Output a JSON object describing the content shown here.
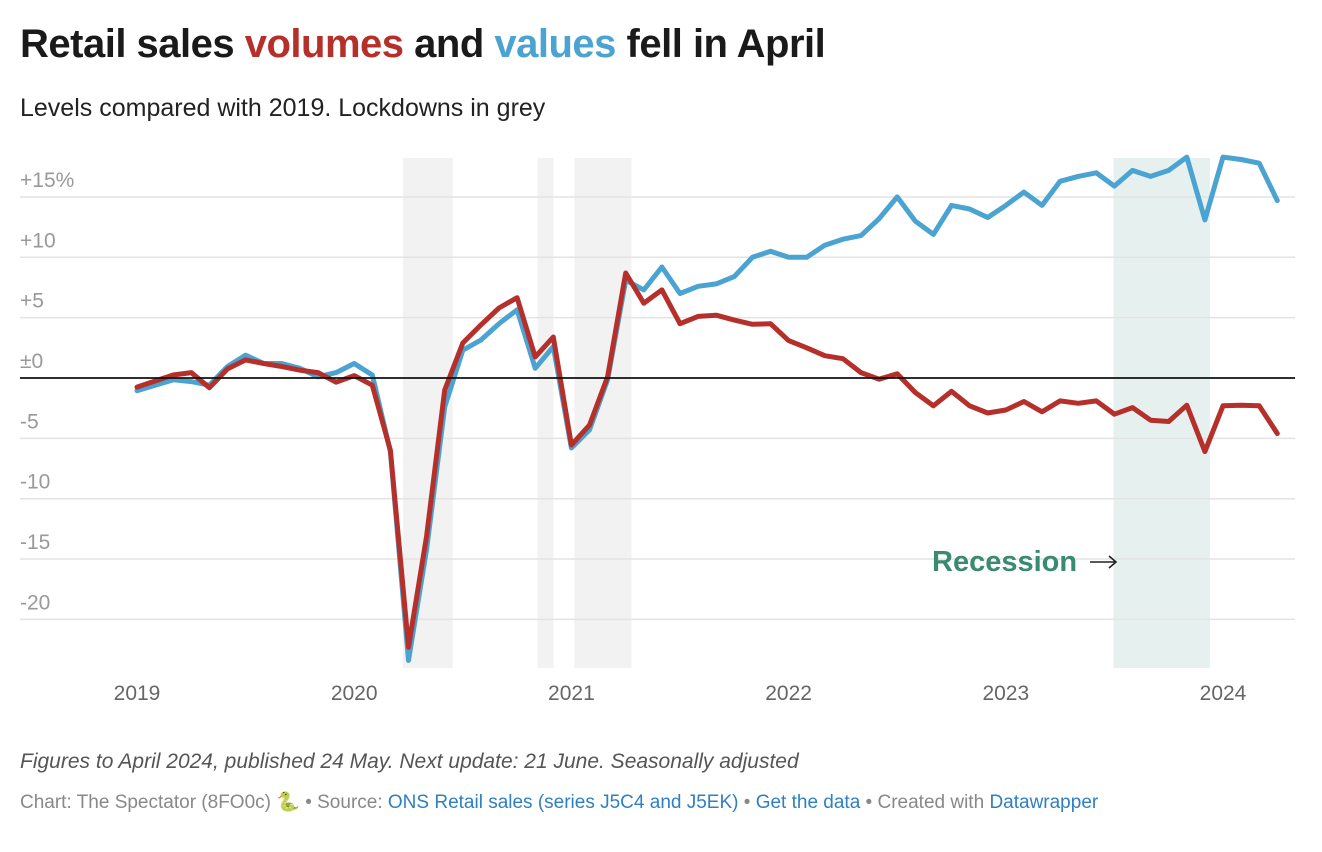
{
  "title": {
    "part1": "Retail sales ",
    "volumes": "volumes",
    "part2": " and ",
    "values": "values",
    "part3": " fell in April"
  },
  "subtitle": "Levels compared with 2019. Lockdowns in grey",
  "colors": {
    "volumes": "#b5302a",
    "values": "#4aa3d0",
    "lockdown": "#f2f2f2",
    "recession": "#e6f1ef",
    "recession_label": "#3a8a6e"
  },
  "chart_data": {
    "type": "line",
    "start_month": "2019-01",
    "end_month": "2024-04",
    "ylim": [
      -24,
      18
    ],
    "yticks": [
      {
        "v": 15,
        "label": "+15%"
      },
      {
        "v": 10,
        "label": "+10"
      },
      {
        "v": 5,
        "label": "+5"
      },
      {
        "v": 0,
        "label": "±0"
      },
      {
        "v": -5,
        "label": "-5"
      },
      {
        "v": -10,
        "label": "-10"
      },
      {
        "v": -15,
        "label": "-15"
      },
      {
        "v": -20,
        "label": "-20"
      }
    ],
    "xticks": [
      "2019",
      "2020",
      "2021",
      "2022",
      "2023",
      "2024"
    ],
    "grid": true,
    "series": [
      {
        "key": "values",
        "values": [
          -1.05,
          -0.6,
          -0.15,
          -0.3,
          -0.6,
          0.95,
          1.9,
          1.2,
          1.2,
          0.8,
          0.1,
          0.45,
          1.2,
          0.25,
          -6.1,
          -23.4,
          -14.2,
          -2.4,
          2.3,
          3.15,
          4.5,
          5.65,
          0.8,
          2.6,
          -5.8,
          -4.3,
          -0.15,
          8.1,
          7.3,
          9.2,
          7.0,
          7.6,
          7.8,
          8.4,
          10.0,
          10.5,
          10.0,
          10.0,
          11.0,
          11.5,
          11.8,
          13.2,
          15.0,
          13.0,
          11.9,
          14.3,
          14.0,
          13.3,
          14.3,
          15.4,
          14.3,
          16.3,
          16.7,
          17.0,
          15.9,
          17.2,
          16.7,
          17.2,
          18.3,
          13.1,
          18.3,
          18.1,
          17.8,
          14.7
        ]
      },
      {
        "key": "volumes",
        "values": [
          -0.75,
          -0.25,
          0.25,
          0.45,
          -0.8,
          0.75,
          1.5,
          1.2,
          0.95,
          0.65,
          0.45,
          -0.35,
          0.2,
          -0.6,
          -6.0,
          -22.3,
          -13.1,
          -1.0,
          2.9,
          4.4,
          5.8,
          6.65,
          1.75,
          3.4,
          -5.55,
          -3.9,
          0.1,
          8.7,
          6.2,
          7.3,
          4.5,
          5.1,
          5.2,
          4.8,
          4.45,
          4.5,
          3.1,
          2.5,
          1.85,
          1.6,
          0.45,
          -0.1,
          0.35,
          -1.2,
          -2.3,
          -1.1,
          -2.3,
          -2.9,
          -2.65,
          -1.95,
          -2.8,
          -1.9,
          -2.1,
          -1.9,
          -3.0,
          -2.45,
          -3.5,
          -3.6,
          -2.25,
          -6.1,
          -2.3,
          -2.25,
          -2.3,
          -4.6
        ]
      }
    ],
    "lockdowns": [
      [
        "2020-03-23",
        "2020-06-15"
      ],
      [
        "2020-11-05",
        "2020-12-02"
      ],
      [
        "2021-01-06",
        "2021-04-12"
      ]
    ],
    "recession": [
      "2023-07-01",
      "2023-12-10"
    ],
    "annotation": "Recession"
  },
  "notes": "Figures to April 2024, published 24 May. Next update: 21 June. Seasonally adjusted",
  "byline": {
    "chart": "Chart: The Spectator (8FO0c) 🐍",
    "source_prefix": " • Source: ",
    "source_link": "ONS Retail sales (series J5C4 and J5EK)",
    "sep": " • ",
    "data_link": "Get the data",
    "created": " • Created with ",
    "dw_link": "Datawrapper"
  }
}
